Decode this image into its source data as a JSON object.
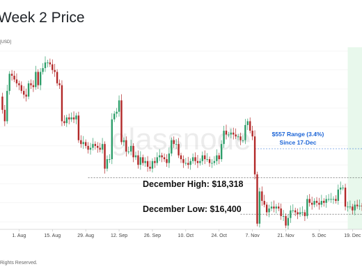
{
  "page": {
    "title": "Week 2 Price",
    "unit": "[USD]",
    "footer": "Rights Reserved.",
    "watermark": "glassnode"
  },
  "colors": {
    "up": "#2e9e6a",
    "down": "#b22828",
    "highlight": "#e8f8ec",
    "annotation_blue": "#1a63d6",
    "grid": "#ececec"
  },
  "chart_data": {
    "type": "candlestick",
    "title": "Week 2 Price",
    "ylabel": "[USD]",
    "x_range": [
      "2022-07-24",
      "2022-12-23"
    ],
    "ylim": [
      15600,
      25200
    ],
    "x_ticks": [
      "1. Aug",
      "15. Aug",
      "29. Aug",
      "12. Sep",
      "26. Sep",
      "10. Oct",
      "24. Oct",
      "7. Nov",
      "21. Nov",
      "5. Dec",
      "19. Dec"
    ],
    "highlight_start": "2022-12-17",
    "levels": [
      {
        "label": "December High: $18,318",
        "value": 18318
      },
      {
        "label": "December Low: $16,400",
        "value": 16400
      }
    ],
    "range_note": [
      "$557 Range (3.4%)",
      "Since 17-Dec"
    ],
    "range_line_value": 19850,
    "series": [
      {
        "name": "Price",
        "dates": [
          "2022-07-24",
          "2022-07-25",
          "2022-07-26",
          "2022-07-27",
          "2022-07-28",
          "2022-07-29",
          "2022-07-30",
          "2022-07-31",
          "2022-08-01",
          "2022-08-02",
          "2022-08-03",
          "2022-08-04",
          "2022-08-05",
          "2022-08-06",
          "2022-08-07",
          "2022-08-08",
          "2022-08-09",
          "2022-08-10",
          "2022-08-11",
          "2022-08-12",
          "2022-08-13",
          "2022-08-14",
          "2022-08-15",
          "2022-08-16",
          "2022-08-17",
          "2022-08-18",
          "2022-08-19",
          "2022-08-20",
          "2022-08-21",
          "2022-08-22",
          "2022-08-23",
          "2022-08-24",
          "2022-08-25",
          "2022-08-26",
          "2022-08-27",
          "2022-08-28",
          "2022-08-29",
          "2022-08-30",
          "2022-08-31",
          "2022-09-01",
          "2022-09-02",
          "2022-09-03",
          "2022-09-04",
          "2022-09-05",
          "2022-09-06",
          "2022-09-07",
          "2022-09-08",
          "2022-09-09",
          "2022-09-10",
          "2022-09-11",
          "2022-09-12",
          "2022-09-13",
          "2022-09-14",
          "2022-09-15",
          "2022-09-16",
          "2022-09-17",
          "2022-09-18",
          "2022-09-19",
          "2022-09-20",
          "2022-09-21",
          "2022-09-22",
          "2022-09-23",
          "2022-09-24",
          "2022-09-25",
          "2022-09-26",
          "2022-09-27",
          "2022-09-28",
          "2022-09-29",
          "2022-09-30",
          "2022-10-01",
          "2022-10-02",
          "2022-10-03",
          "2022-10-04",
          "2022-10-05",
          "2022-10-06",
          "2022-10-07",
          "2022-10-08",
          "2022-10-09",
          "2022-10-10",
          "2022-10-11",
          "2022-10-12",
          "2022-10-13",
          "2022-10-14",
          "2022-10-15",
          "2022-10-16",
          "2022-10-17",
          "2022-10-18",
          "2022-10-19",
          "2022-10-20",
          "2022-10-21",
          "2022-10-22",
          "2022-10-23",
          "2022-10-24",
          "2022-10-25",
          "2022-10-26",
          "2022-10-27",
          "2022-10-28",
          "2022-10-29",
          "2022-10-30",
          "2022-10-31",
          "2022-11-01",
          "2022-11-02",
          "2022-11-03",
          "2022-11-04",
          "2022-11-05",
          "2022-11-06",
          "2022-11-07",
          "2022-11-08",
          "2022-11-09",
          "2022-11-10",
          "2022-11-11",
          "2022-11-12",
          "2022-11-13",
          "2022-11-14",
          "2022-11-15",
          "2022-11-16",
          "2022-11-17",
          "2022-11-18",
          "2022-11-19",
          "2022-11-20",
          "2022-11-21",
          "2022-11-22",
          "2022-11-23",
          "2022-11-24",
          "2022-11-25",
          "2022-11-26",
          "2022-11-27",
          "2022-11-28",
          "2022-11-29",
          "2022-11-30",
          "2022-12-01",
          "2022-12-02",
          "2022-12-03",
          "2022-12-04",
          "2022-12-05",
          "2022-12-06",
          "2022-12-07",
          "2022-12-08",
          "2022-12-09",
          "2022-12-10",
          "2022-12-11",
          "2022-12-12",
          "2022-12-13",
          "2022-12-14",
          "2022-12-15",
          "2022-12-16",
          "2022-12-17",
          "2022-12-18",
          "2022-12-19",
          "2022-12-20",
          "2022-12-21",
          "2022-12-22",
          "2022-12-23"
        ],
        "close": [
          22600,
          21900,
          21300,
          22900,
          23800,
          23700,
          23500,
          23300,
          23200,
          22900,
          22700,
          22600,
          23300,
          23200,
          23100,
          23900,
          23200,
          23900,
          24100,
          24400,
          24400,
          24300,
          24000,
          23900,
          23300,
          23200,
          21300,
          21200,
          21500,
          21400,
          21500,
          21400,
          21600,
          20300,
          20100,
          20200,
          20000,
          19800,
          19900,
          20100,
          20000,
          19900,
          19800,
          20100,
          18800,
          19300,
          19300,
          21400,
          21700,
          21800,
          22400,
          20200,
          20300,
          19700,
          19700,
          20000,
          19400,
          19500,
          19000,
          19400,
          19100,
          19200,
          18900,
          18800,
          19200,
          19100,
          19400,
          19500,
          19400,
          19300,
          19100,
          19600,
          20300,
          20100,
          20100,
          19500,
          19300,
          19100,
          19100,
          19000,
          19200,
          19400,
          19200,
          19100,
          19200,
          19500,
          19300,
          19300,
          19100,
          19100,
          19200,
          19500,
          19300,
          20100,
          20800,
          20600,
          20600,
          20700,
          20600,
          20500,
          20500,
          20300,
          20300,
          21100,
          21300,
          20800,
          20500,
          18500,
          15900,
          17600,
          17100,
          16900,
          16500,
          16700,
          16800,
          16700,
          16800,
          16700,
          16300,
          16300,
          15800,
          16200,
          16600,
          16600,
          16500,
          16400,
          16500,
          16500,
          16300,
          17200,
          17000,
          16900,
          17100,
          17000,
          16900,
          17100,
          17000,
          17200,
          17200,
          17200,
          17200,
          17100,
          17700,
          17800,
          17800,
          16800,
          16800,
          16800,
          16600,
          16900,
          16820,
          16850,
          16830
        ]
      }
    ]
  }
}
